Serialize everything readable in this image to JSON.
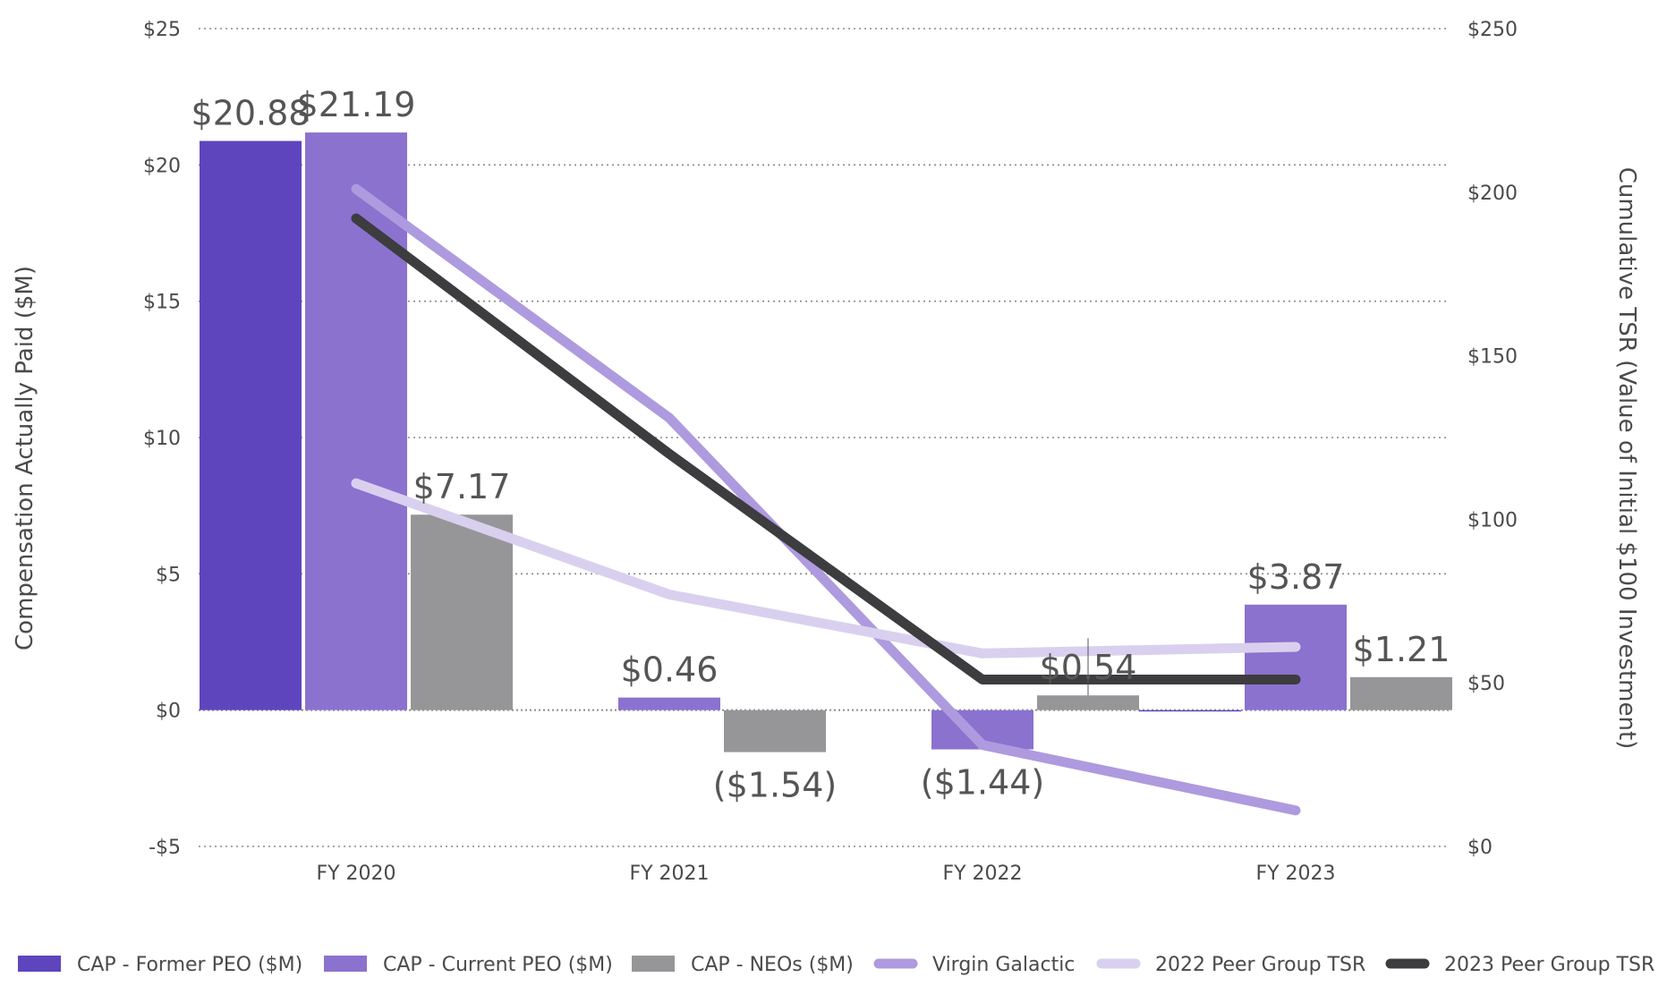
{
  "chart_data": {
    "type": "bar",
    "title": "",
    "categories": [
      "FY 2020",
      "FY 2021",
      "FY 2022",
      "FY 2023"
    ],
    "ylabel": "Compensation Actually Paid ($M)",
    "y2label": "Cumulative TSR (Value of Initial $100 Investment)",
    "ylim": [
      -5,
      25
    ],
    "y2lim": [
      0,
      250
    ],
    "yticks": [
      {
        "value": 25,
        "label": "$25"
      },
      {
        "value": 20,
        "label": "$20"
      },
      {
        "value": 15,
        "label": "$15"
      },
      {
        "value": 10,
        "label": "$10"
      },
      {
        "value": 5,
        "label": "$5"
      },
      {
        "value": 0,
        "label": "$0"
      },
      {
        "value": -5,
        "label": "-$5"
      }
    ],
    "y2ticks": [
      {
        "value": 250,
        "label": "$250"
      },
      {
        "value": 200,
        "label": "$200"
      },
      {
        "value": 150,
        "label": "$150"
      },
      {
        "value": 100,
        "label": "$100"
      },
      {
        "value": 50,
        "label": "$50"
      },
      {
        "value": 0,
        "label": "$0"
      }
    ],
    "bar_series": [
      {
        "name": "CAP - Former PEO ($M)",
        "color": "#5e45bd",
        "values": [
          20.88,
          null,
          null,
          0.0
        ],
        "labels": [
          "$20.88",
          "",
          "",
          ""
        ]
      },
      {
        "name": "CAP - Current PEO ($M)",
        "color": "#8b72cf",
        "values": [
          21.19,
          0.46,
          -1.44,
          3.87
        ],
        "labels": [
          "$21.19",
          "$0.46",
          "($1.44)",
          "$3.87"
        ]
      },
      {
        "name": "CAP - NEOs ($M)",
        "color": "#969699",
        "values": [
          7.17,
          -1.54,
          0.54,
          1.21
        ],
        "labels": [
          "$7.17",
          "($1.54)",
          "$0.54",
          "$1.21"
        ]
      }
    ],
    "line_series": [
      {
        "name": "Virgin Galactic",
        "color": "#ae9ade",
        "axis": "right",
        "values": [
          201,
          131,
          31,
          11
        ]
      },
      {
        "name": "2022 Peer Group TSR",
        "color": "#d9d0ef",
        "axis": "right",
        "values": [
          111,
          77,
          59,
          61
        ]
      },
      {
        "name": "2023 Peer Group TSR",
        "color": "#3d3c3f",
        "axis": "right",
        "values": [
          192,
          120,
          51,
          51
        ]
      }
    ],
    "legend": [
      {
        "name": "CAP - Former PEO ($M)",
        "kind": "bar",
        "color": "#5e45bd"
      },
      {
        "name": "CAP - Current PEO ($M)",
        "kind": "bar",
        "color": "#8b72cf"
      },
      {
        "name": "CAP - NEOs ($M)",
        "kind": "bar",
        "color": "#969699"
      },
      {
        "name": "Virgin Galactic",
        "kind": "line",
        "color": "#ae9ade"
      },
      {
        "name": "2022 Peer Group TSR",
        "kind": "line",
        "color": "#d9d0ef"
      },
      {
        "name": "2023 Peer Group TSR",
        "kind": "line",
        "color": "#3d3c3f"
      }
    ],
    "legend_position": "bottom",
    "grid": true
  }
}
